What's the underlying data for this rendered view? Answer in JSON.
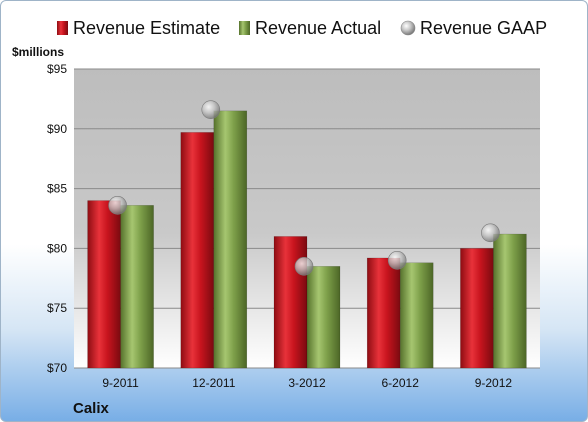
{
  "chart_data": {
    "type": "bar",
    "title": "",
    "ylabel": "$millions",
    "company": "Calix",
    "categories": [
      "9-2011",
      "12-2011",
      "3-2012",
      "6-2012",
      "9-2012"
    ],
    "series": [
      {
        "name": "Revenue Estimate",
        "kind": "bar",
        "color": "#c8141e",
        "values": [
          84.0,
          89.7,
          81.0,
          79.2,
          80.0
        ]
      },
      {
        "name": "Revenue Actual",
        "kind": "bar",
        "color": "#7ea04a",
        "values": [
          83.6,
          91.5,
          78.5,
          78.8,
          81.2
        ]
      },
      {
        "name": "Revenue GAAP",
        "kind": "marker",
        "color": "#b8b8b8",
        "values": [
          83.6,
          91.6,
          78.5,
          79.0,
          81.3
        ]
      }
    ],
    "ylim": [
      70,
      95
    ],
    "yticks": [
      {
        "value": 70,
        "label": "$70"
      },
      {
        "value": 75,
        "label": "$75"
      },
      {
        "value": 80,
        "label": "$80"
      },
      {
        "value": 85,
        "label": "$85"
      },
      {
        "value": 90,
        "label": "$90"
      },
      {
        "value": 95,
        "label": "$95"
      }
    ],
    "grid": true,
    "legend": "top"
  }
}
